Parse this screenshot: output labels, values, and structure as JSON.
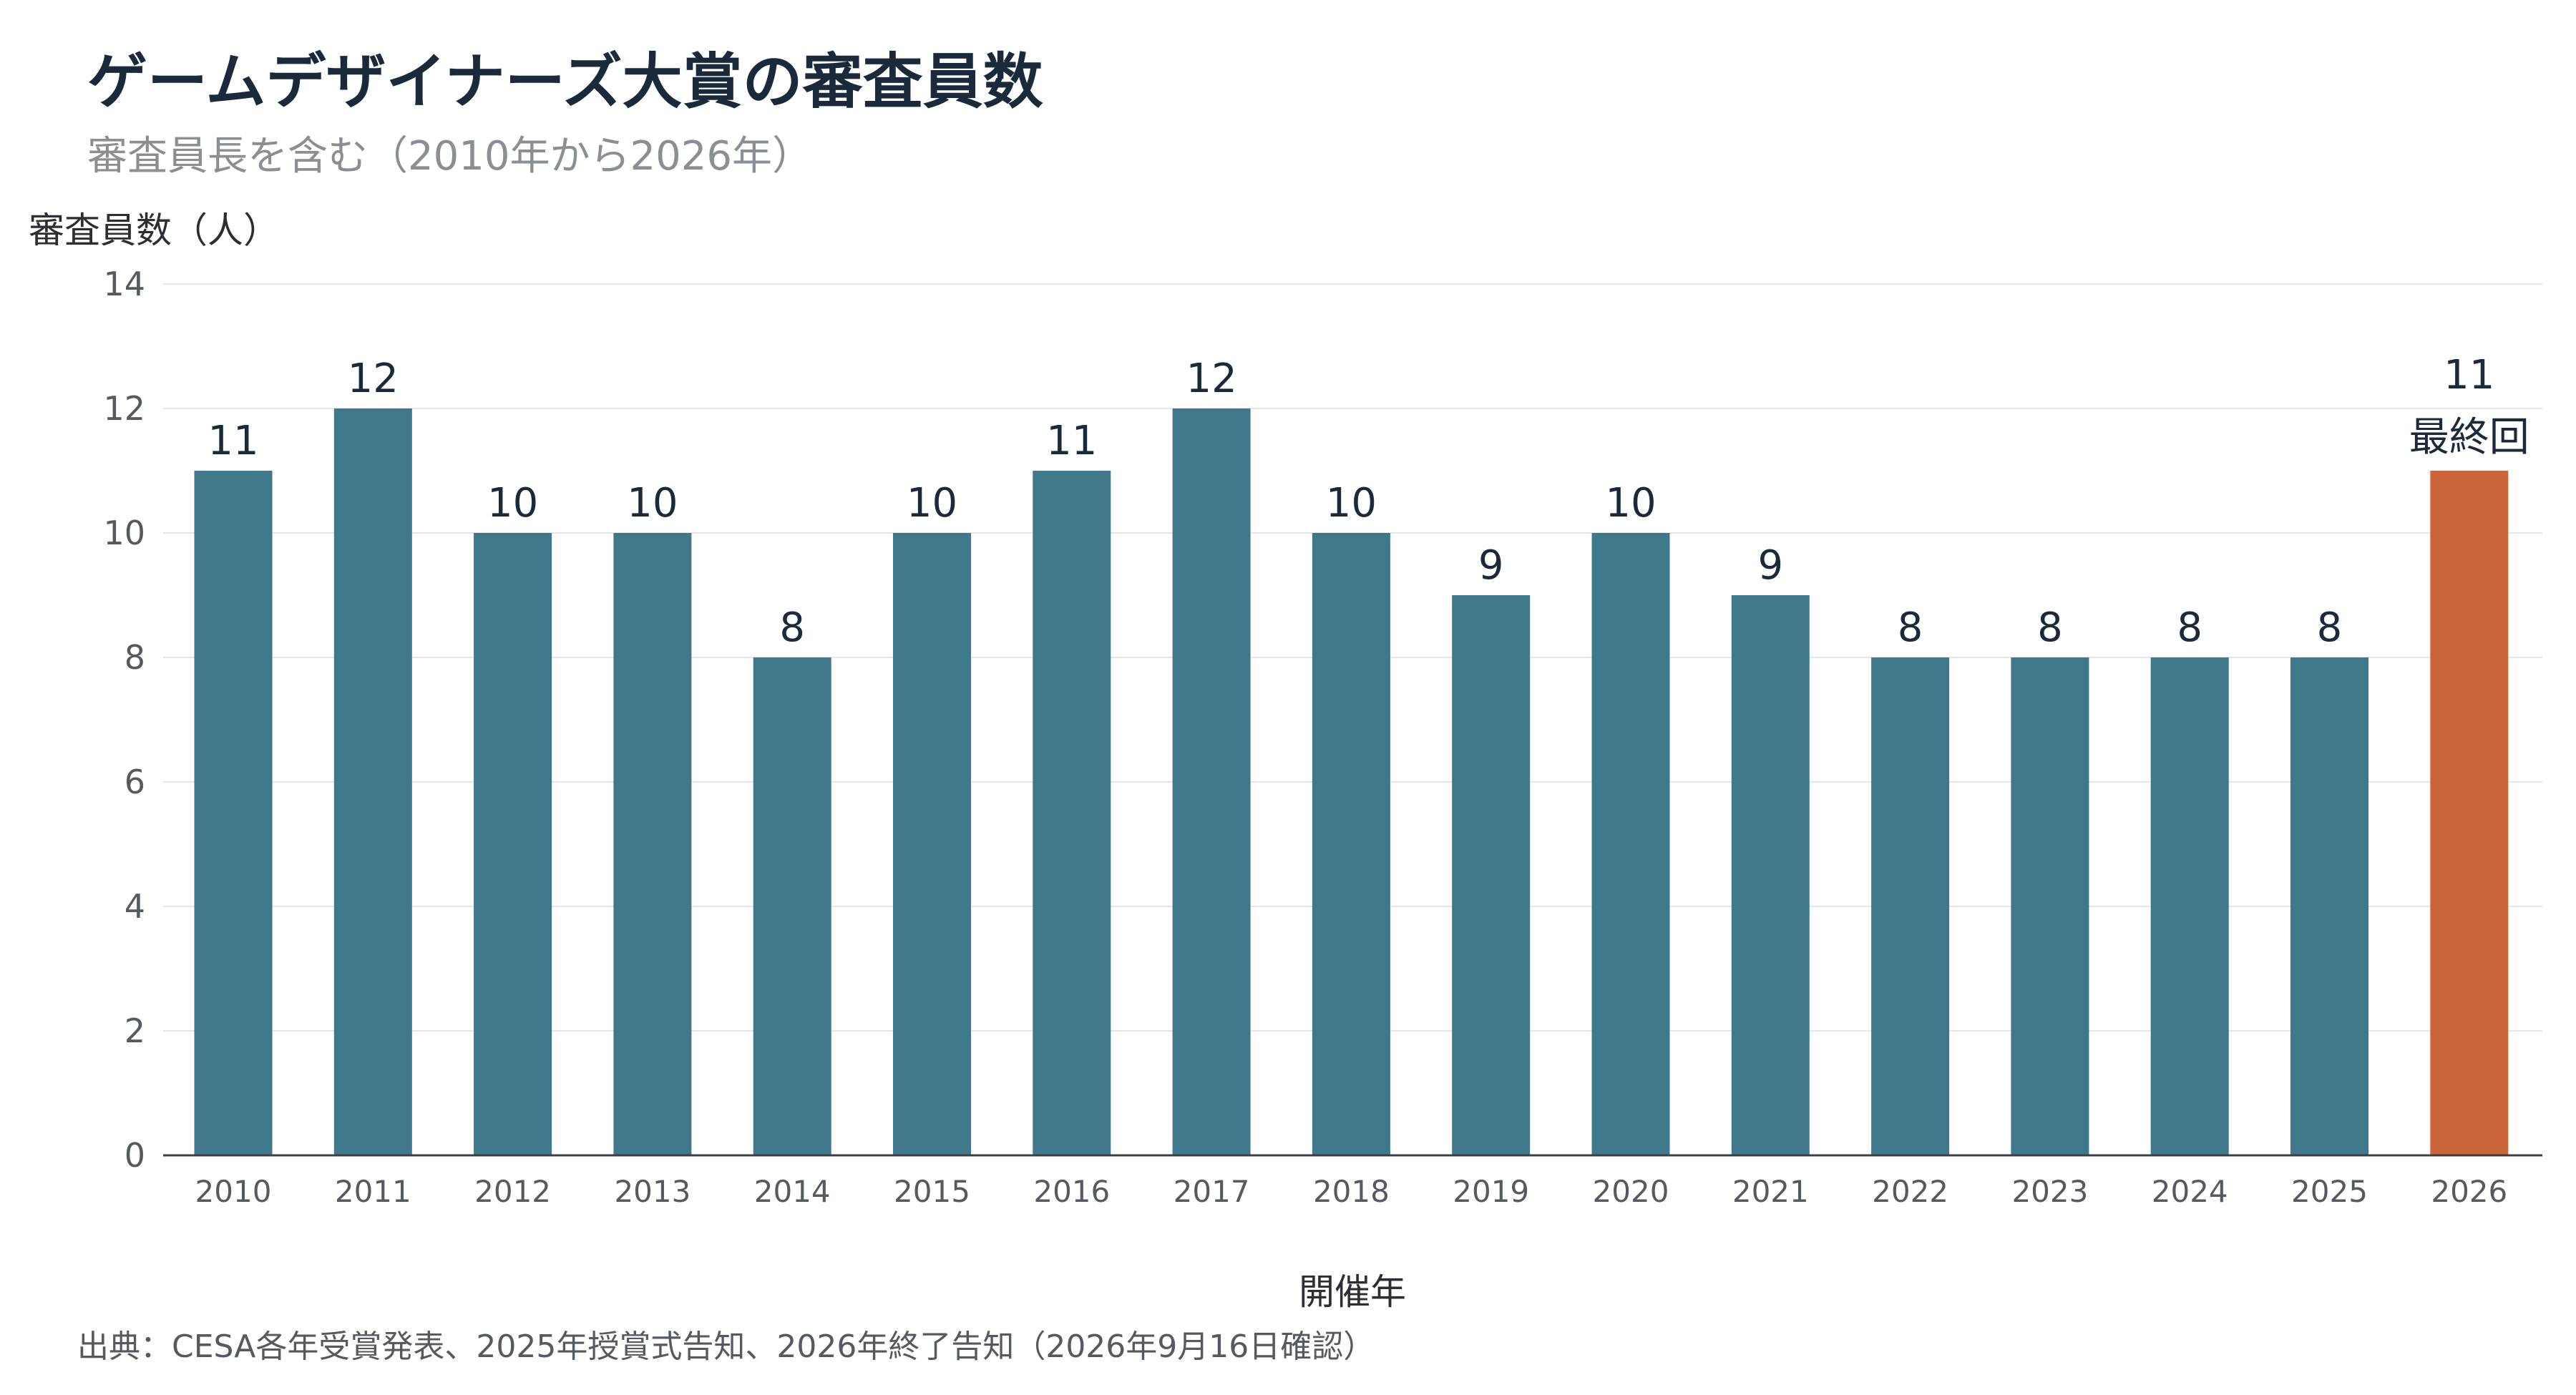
{
  "chart_data": {
    "type": "bar",
    "title": "ゲームデザイナーズ大賞の審査員数",
    "subtitle": "審査員長を含む（2010年から2026年）",
    "ylabel": "審査員数（人）",
    "xlabel": "開催年",
    "source": "出典：CESA各年受賞発表、2025年授賞式告知、2026年終了告知（2026年9月16日確認）",
    "categories": [
      "2010",
      "2011",
      "2012",
      "2013",
      "2014",
      "2015",
      "2016",
      "2017",
      "2018",
      "2019",
      "2020",
      "2021",
      "2022",
      "2023",
      "2024",
      "2025",
      "2026"
    ],
    "values": [
      11,
      12,
      10,
      10,
      8,
      10,
      11,
      12,
      10,
      9,
      10,
      9,
      8,
      8,
      8,
      8,
      11
    ],
    "ylim": [
      0,
      14
    ],
    "yticks": [
      0,
      2,
      4,
      6,
      8,
      10,
      12,
      14
    ],
    "grid": true,
    "colors": {
      "default": "#3e788a",
      "highlight": "#cc6439"
    },
    "highlight": {
      "category": "2026",
      "note": "最終回"
    }
  }
}
